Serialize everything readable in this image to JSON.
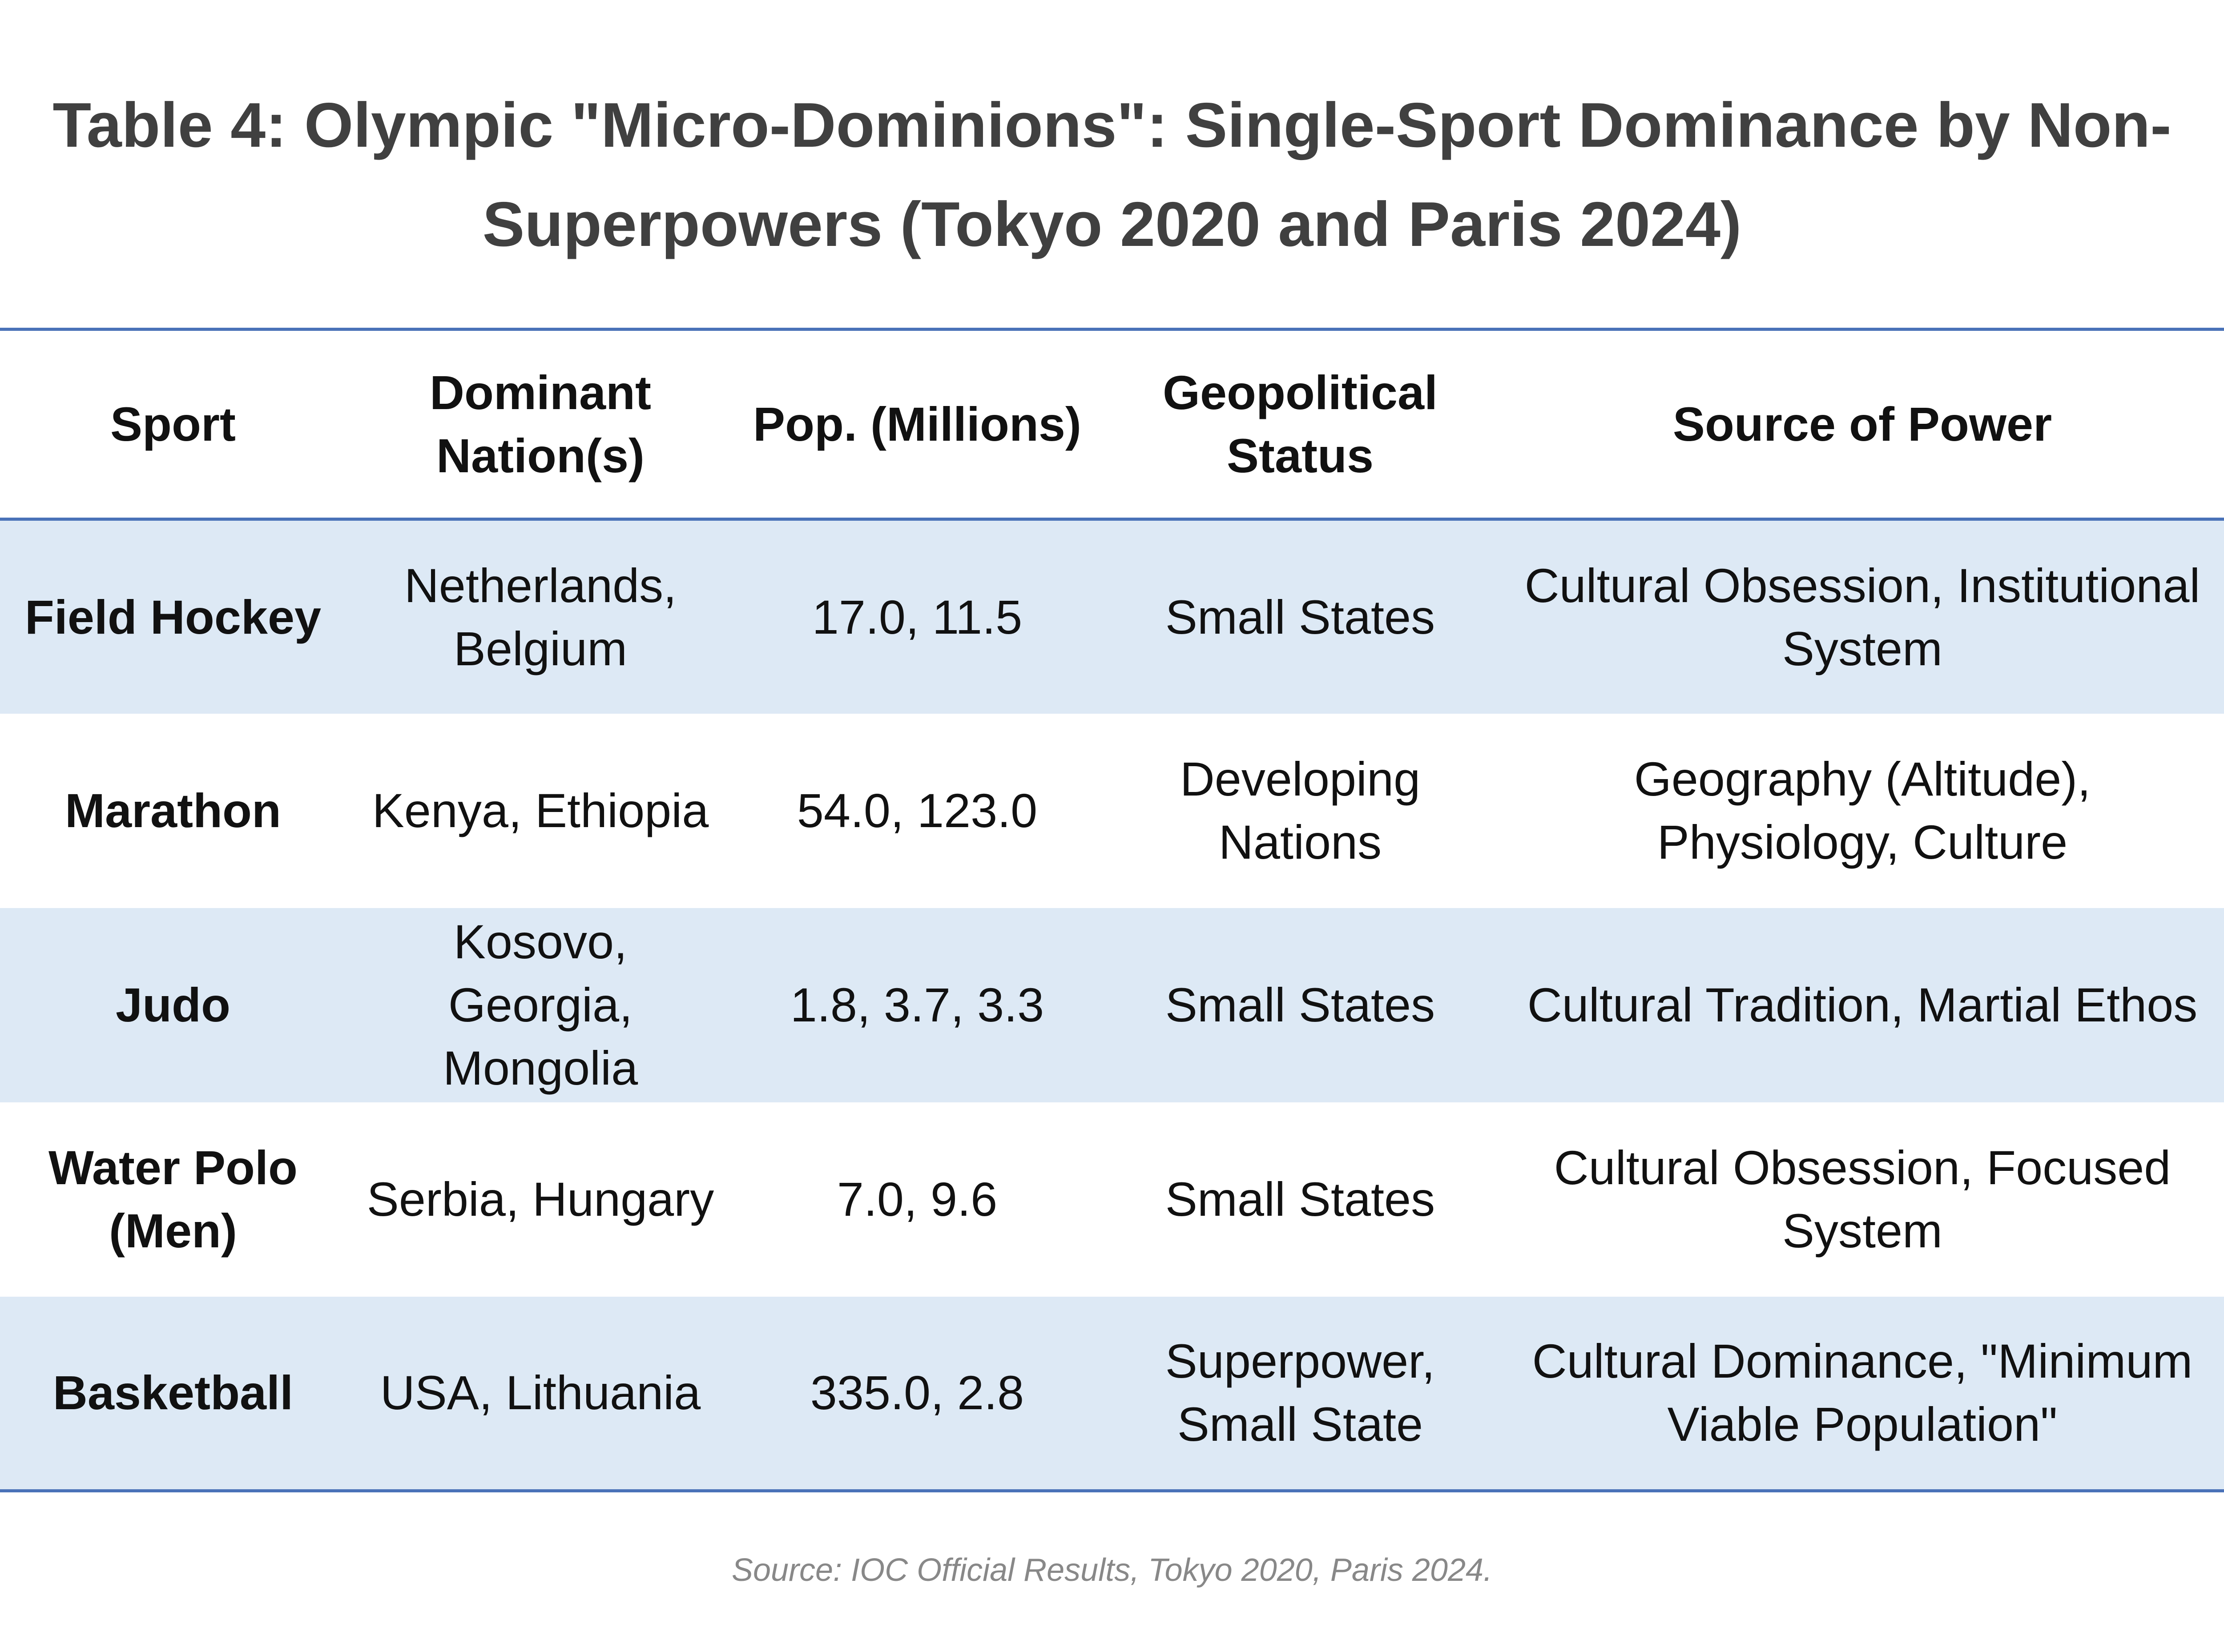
{
  "header": {
    "title": "Table 4: Olympic \"Micro-Dominions\": Single-Sport Dominance by Non-Superpowers (Tokyo 2020 and Paris 2024)"
  },
  "table": {
    "headers": [
      "Sport",
      "Dominant Nation(s)",
      "Pop. (Millions)",
      "Geopolitical Status",
      "Source of Power"
    ],
    "rows": [
      [
        "Field Hockey",
        "Netherlands, Belgium",
        "17.0, 11.5",
        "Small States",
        "Cultural Obsession, Institutional System"
      ],
      [
        "Marathon",
        "Kenya, Ethiopia",
        "54.0, 123.0",
        "Developing Nations",
        "Geography (Altitude), Physiology, Culture"
      ],
      [
        "Judo",
        "Kosovo, Georgia, Mongolia",
        "1.8, 3.7, 3.3",
        "Small States",
        "Cultural Tradition, Martial Ethos"
      ],
      [
        "Water Polo (Men)",
        "Serbia, Hungary",
        "7.0, 9.6",
        "Small States",
        "Cultural Obsession, Focused System"
      ],
      [
        "Basketball",
        "USA, Lithuania",
        "335.0, 2.8",
        "Superpower, Small State",
        "Cultural Dominance, \"Minimum Viable Population\""
      ]
    ]
  },
  "footer": {
    "source": "Source: IOC Official Results, Tokyo 2020, Paris 2024."
  }
}
